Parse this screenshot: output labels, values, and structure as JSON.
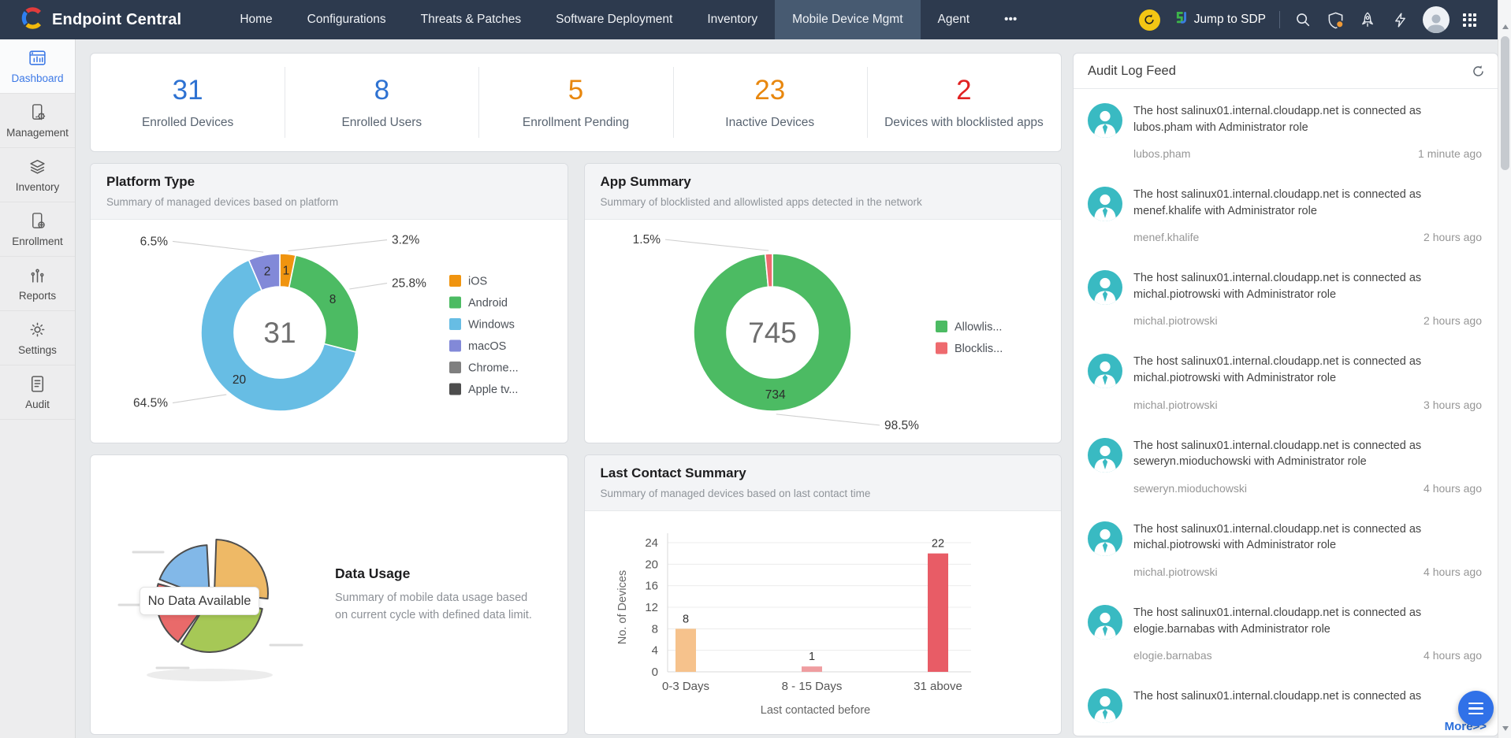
{
  "navbar": {
    "brand": "Endpoint Central",
    "items": [
      {
        "label": "Home",
        "active": false
      },
      {
        "label": "Configurations",
        "active": false
      },
      {
        "label": "Threats & Patches",
        "active": false
      },
      {
        "label": "Software Deployment",
        "active": false
      },
      {
        "label": "Inventory",
        "active": false
      },
      {
        "label": "Mobile Device Mgmt",
        "active": true
      },
      {
        "label": "Agent",
        "active": false
      },
      {
        "label": "•••",
        "active": false
      }
    ],
    "jump_to_sdp_label": "Jump to SDP",
    "right_icons": [
      "refresh-icon",
      "sdp-logo-icon",
      "search-icon",
      "shield-icon",
      "rocket-icon",
      "bolt-icon",
      "avatar",
      "app-grid-icon"
    ]
  },
  "sidebar": {
    "items": [
      {
        "label": "Dashboard",
        "icon": "dashboard-icon",
        "active": true
      },
      {
        "label": "Management",
        "icon": "management-icon",
        "active": false
      },
      {
        "label": "Inventory",
        "icon": "inventory-icon",
        "active": false
      },
      {
        "label": "Enrollment",
        "icon": "enrollment-icon",
        "active": false
      },
      {
        "label": "Reports",
        "icon": "reports-icon",
        "active": false
      },
      {
        "label": "Settings",
        "icon": "settings-icon",
        "active": false
      },
      {
        "label": "Audit",
        "icon": "audit-icon",
        "active": false
      }
    ]
  },
  "stats": [
    {
      "value": "31",
      "label": "Enrolled Devices",
      "color": "#2e72d2"
    },
    {
      "value": "8",
      "label": "Enrolled Users",
      "color": "#2e72d2"
    },
    {
      "value": "5",
      "label": "Enrollment Pending",
      "color": "#e8870e"
    },
    {
      "value": "23",
      "label": "Inactive Devices",
      "color": "#e8870e"
    },
    {
      "value": "2",
      "label": "Devices with blocklisted apps",
      "color": "#e12222"
    }
  ],
  "cards": {
    "platform_type": {
      "title": "Platform Type",
      "subtitle": "Summary of managed devices based on platform"
    },
    "app_summary": {
      "title": "App Summary",
      "subtitle": "Summary of blocklisted and allowlisted apps detected in the network"
    },
    "data_usage": {
      "title": "Data Usage",
      "description": "Summary of mobile data usage based on current cycle with defined data limit.",
      "no_data_label": "No Data Available"
    },
    "last_contact": {
      "title": "Last Contact Summary",
      "subtitle": "Summary of managed devices based on last contact time"
    }
  },
  "chart_data": [
    {
      "id": "platform_type",
      "type": "donut",
      "title": "Platform Type",
      "center_label": "31",
      "segments": [
        {
          "label": "iOS",
          "value": 1,
          "pct": "3.2%",
          "color": "#f0940f",
          "show_value": true
        },
        {
          "label": "Android",
          "value": 8,
          "pct": "25.8%",
          "color": "#4cbb63",
          "show_value": true
        },
        {
          "label": "Windows",
          "value": 20,
          "pct": "64.5%",
          "color": "#67bde4",
          "show_value": true
        },
        {
          "label": "macOS",
          "value": 2,
          "pct": "6.5%",
          "color": "#8289d8",
          "show_value": true
        }
      ],
      "legend": [
        {
          "label": "iOS",
          "color": "#f0940f"
        },
        {
          "label": "Android",
          "color": "#4cbb63"
        },
        {
          "label": "Windows",
          "color": "#67bde4"
        },
        {
          "label": "macOS",
          "color": "#8289d8"
        },
        {
          "label": "Chrome...",
          "color": "#7f7f7f"
        },
        {
          "label": "Apple tv...",
          "color": "#4d4d4d"
        }
      ]
    },
    {
      "id": "app_summary",
      "type": "donut",
      "title": "App Summary",
      "center_label": "745",
      "segments": [
        {
          "label": "Allowlisted",
          "value": 734,
          "pct": "98.5%",
          "color": "#4cbb63",
          "show_value": true
        },
        {
          "label": "Blocklisted",
          "value": 11,
          "pct": "1.5%",
          "color": "#ee6a6e",
          "show_value": false
        }
      ],
      "legend": [
        {
          "label": "Allowlis...",
          "color": "#4cbb63"
        },
        {
          "label": "Blocklis...",
          "color": "#ee6a6e"
        }
      ]
    },
    {
      "id": "last_contact",
      "type": "bar",
      "title": "Last Contact Summary",
      "categories": [
        "0-3 Days",
        "8 - 15 Days",
        "31 above"
      ],
      "values": [
        8,
        1,
        22
      ],
      "bar_colors": [
        "#f6c28c",
        "#ef9da0",
        "#e85c66"
      ],
      "xlabel": "Last contacted before",
      "ylabel": "No. of Devices",
      "ylim": [
        0,
        24
      ],
      "ytick_step": 4,
      "grid": true
    }
  ],
  "audit_log": {
    "title": "Audit Log Feed",
    "more_label": "More>>",
    "avatar_color": "#39bac2",
    "entries": [
      {
        "message": "The host salinux01.internal.cloudapp.net is connected as lubos.pham with Administrator role",
        "user": "lubos.pham",
        "time": "1 minute ago"
      },
      {
        "message": "The host salinux01.internal.cloudapp.net is connected as menef.khalife with Administrator role",
        "user": "menef.khalife",
        "time": "2 hours ago"
      },
      {
        "message": "The host salinux01.internal.cloudapp.net is connected as michal.piotrowski with Administrator role",
        "user": "michal.piotrowski",
        "time": "2 hours ago"
      },
      {
        "message": "The host salinux01.internal.cloudapp.net is connected as michal.piotrowski with Administrator role",
        "user": "michal.piotrowski",
        "time": "3 hours ago"
      },
      {
        "message": "The host salinux01.internal.cloudapp.net is connected as seweryn.mioduchowski with Administrator role",
        "user": "seweryn.mioduchowski",
        "time": "4 hours ago"
      },
      {
        "message": "The host salinux01.internal.cloudapp.net is connected as michal.piotrowski with Administrator role",
        "user": "michal.piotrowski",
        "time": "4 hours ago"
      },
      {
        "message": "The host salinux01.internal.cloudapp.net is connected as elogie.barnabas with Administrator role",
        "user": "elogie.barnabas",
        "time": "4 hours ago"
      },
      {
        "message": "The host salinux01.internal.cloudapp.net is connected as",
        "user": "",
        "time": ""
      }
    ]
  }
}
